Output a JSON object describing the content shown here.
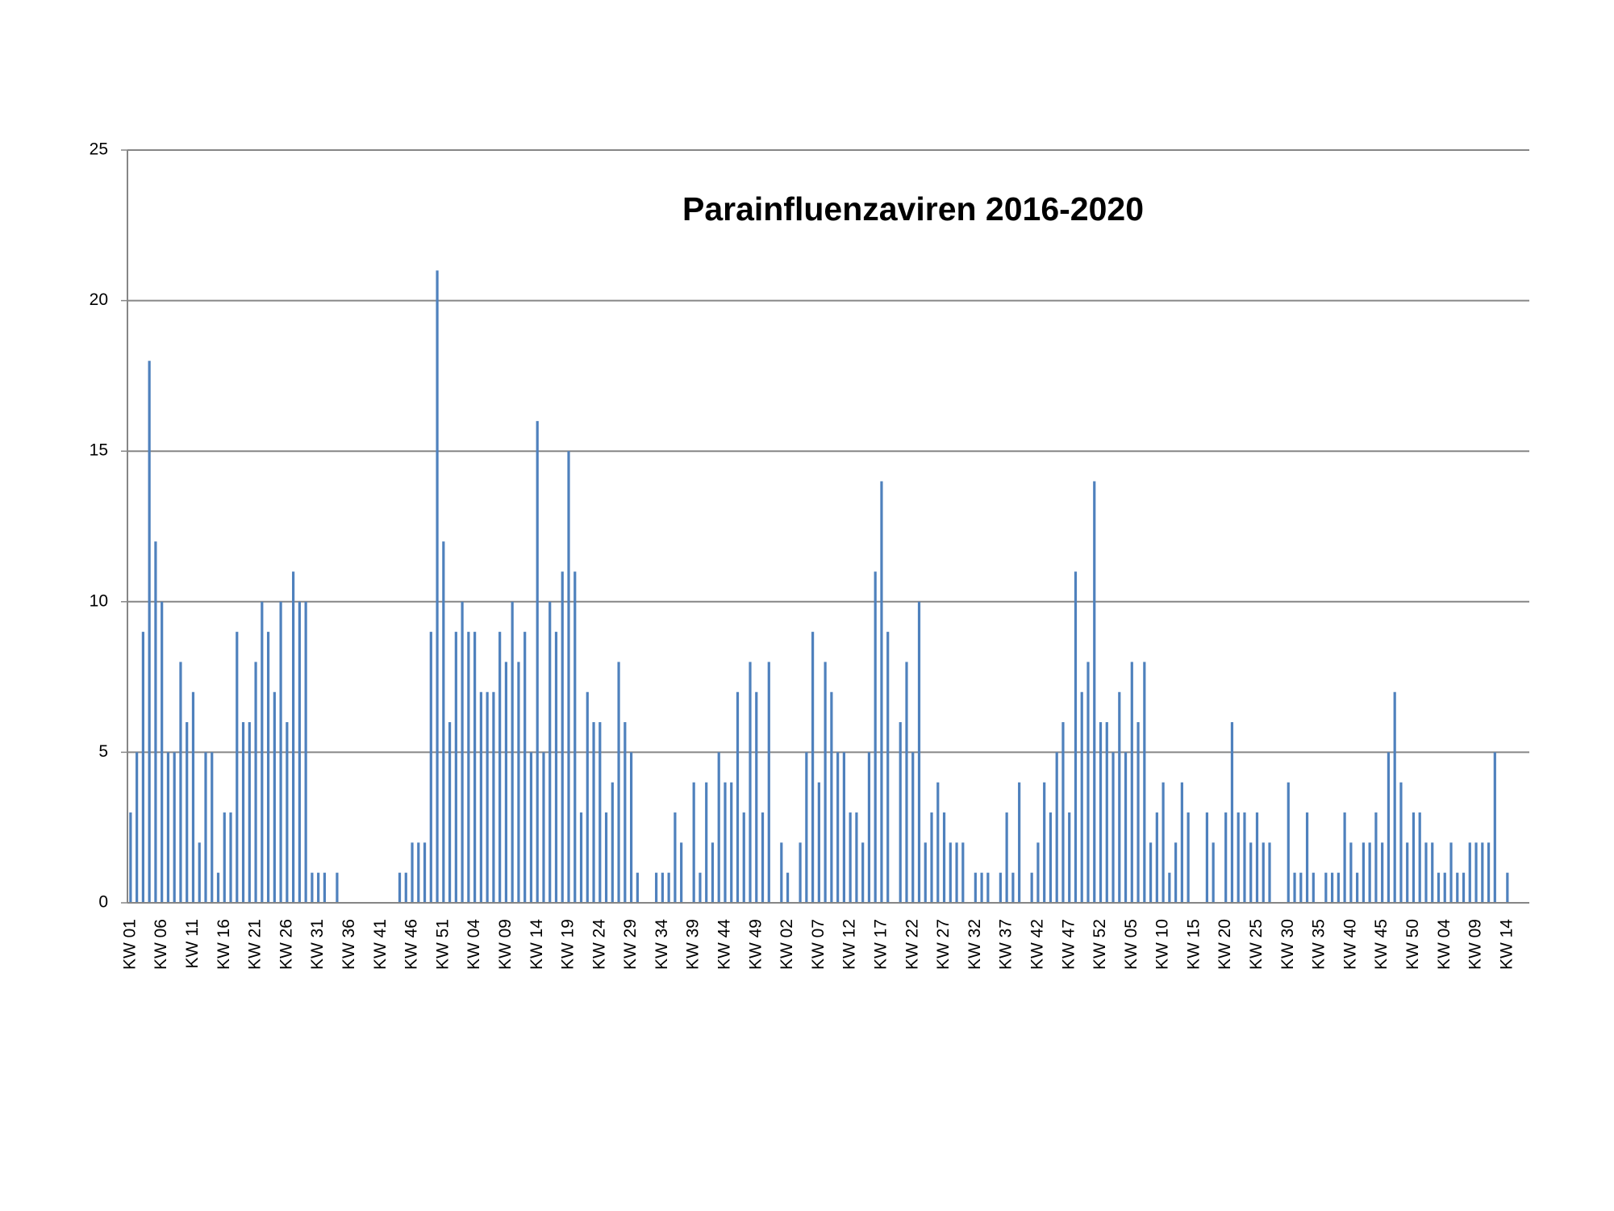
{
  "chart_data": {
    "type": "bar",
    "title": "Parainfluenzaviren 2016-2020",
    "categories": [
      "KW 01",
      null,
      null,
      null,
      null,
      "KW 06",
      null,
      null,
      null,
      null,
      "KW 11",
      null,
      null,
      null,
      null,
      "KW 16",
      null,
      null,
      null,
      null,
      "KW 21",
      null,
      null,
      null,
      null,
      "KW 26",
      null,
      null,
      null,
      null,
      "KW 31",
      null,
      null,
      null,
      null,
      "KW 36",
      null,
      null,
      null,
      null,
      "KW 41",
      null,
      null,
      null,
      null,
      "KW 46",
      null,
      null,
      null,
      null,
      "KW 51",
      null,
      null,
      null,
      null,
      "KW 04",
      null,
      null,
      null,
      null,
      "KW 09",
      null,
      null,
      null,
      null,
      "KW 14",
      null,
      null,
      null,
      null,
      "KW 19",
      null,
      null,
      null,
      null,
      "KW 24",
      null,
      null,
      null,
      null,
      "KW 29",
      null,
      null,
      null,
      null,
      "KW 34",
      null,
      null,
      null,
      null,
      "KW 39",
      null,
      null,
      null,
      null,
      "KW 44",
      null,
      null,
      null,
      null,
      "KW 49",
      null,
      null,
      null,
      null,
      "KW 02",
      null,
      null,
      null,
      null,
      "KW 07",
      null,
      null,
      null,
      null,
      "KW 12",
      null,
      null,
      null,
      null,
      "KW 17",
      null,
      null,
      null,
      null,
      "KW 22",
      null,
      null,
      null,
      null,
      "KW 27",
      null,
      null,
      null,
      null,
      "KW 32",
      null,
      null,
      null,
      null,
      "KW 37",
      null,
      null,
      null,
      null,
      "KW 42",
      null,
      null,
      null,
      null,
      "KW 47",
      null,
      null,
      null,
      null,
      "KW 52",
      null,
      null,
      null,
      null,
      "KW 05",
      null,
      null,
      null,
      null,
      "KW 10",
      null,
      null,
      null,
      null,
      "KW 15",
      null,
      null,
      null,
      null,
      "KW 20",
      null,
      null,
      null,
      null,
      "KW 25",
      null,
      null,
      null,
      null,
      "KW 30",
      null,
      null,
      null,
      null,
      "KW 35",
      null,
      null,
      null,
      null,
      "KW 40",
      null,
      null,
      null,
      null,
      "KW 45",
      null,
      null,
      null,
      null,
      "KW 50",
      null,
      null,
      null,
      null,
      "KW 04",
      null,
      null,
      null,
      null,
      "KW 09",
      null,
      null,
      null,
      null,
      "KW 14",
      null,
      null,
      null
    ],
    "values": [
      3,
      5,
      9,
      18,
      12,
      10,
      5,
      5,
      8,
      6,
      7,
      2,
      5,
      5,
      1,
      3,
      3,
      9,
      6,
      6,
      8,
      10,
      9,
      7,
      10,
      6,
      11,
      10,
      10,
      1,
      1,
      1,
      0,
      1,
      0,
      0,
      0,
      0,
      0,
      0,
      0,
      0,
      0,
      1,
      1,
      2,
      2,
      2,
      9,
      21,
      12,
      6,
      9,
      10,
      9,
      9,
      7,
      7,
      7,
      9,
      8,
      10,
      8,
      9,
      5,
      16,
      5,
      10,
      9,
      11,
      15,
      11,
      3,
      7,
      6,
      6,
      3,
      4,
      8,
      6,
      5,
      1,
      0,
      0,
      1,
      1,
      1,
      3,
      2,
      0,
      4,
      1,
      4,
      2,
      5,
      4,
      4,
      7,
      3,
      8,
      7,
      3,
      8,
      0,
      2,
      1,
      0,
      2,
      5,
      9,
      4,
      8,
      7,
      5,
      5,
      3,
      3,
      2,
      5,
      11,
      14,
      9,
      0,
      6,
      8,
      5,
      10,
      2,
      3,
      4,
      3,
      2,
      2,
      2,
      0,
      1,
      1,
      1,
      0,
      1,
      3,
      1,
      4,
      0,
      1,
      2,
      4,
      3,
      5,
      6,
      3,
      11,
      7,
      8,
      14,
      6,
      6,
      5,
      7,
      5,
      8,
      6,
      8,
      2,
      3,
      4,
      1,
      2,
      4,
      3,
      0,
      0,
      3,
      2,
      0,
      3,
      6,
      3,
      3,
      2,
      3,
      2,
      2,
      0,
      0,
      4,
      1,
      1,
      3,
      1,
      0,
      1,
      1,
      1,
      3,
      2,
      1,
      2,
      2,
      3,
      2,
      5,
      7,
      4,
      2,
      3,
      3,
      2,
      2,
      1,
      1,
      2,
      1,
      1,
      2,
      2,
      2,
      2,
      5,
      0,
      1,
      null,
      null,
      null
    ],
    "color": "#4f81bd",
    "ylim": [
      0,
      25
    ],
    "yticks": [
      0,
      5,
      10,
      15,
      20,
      25
    ],
    "grid": true
  }
}
